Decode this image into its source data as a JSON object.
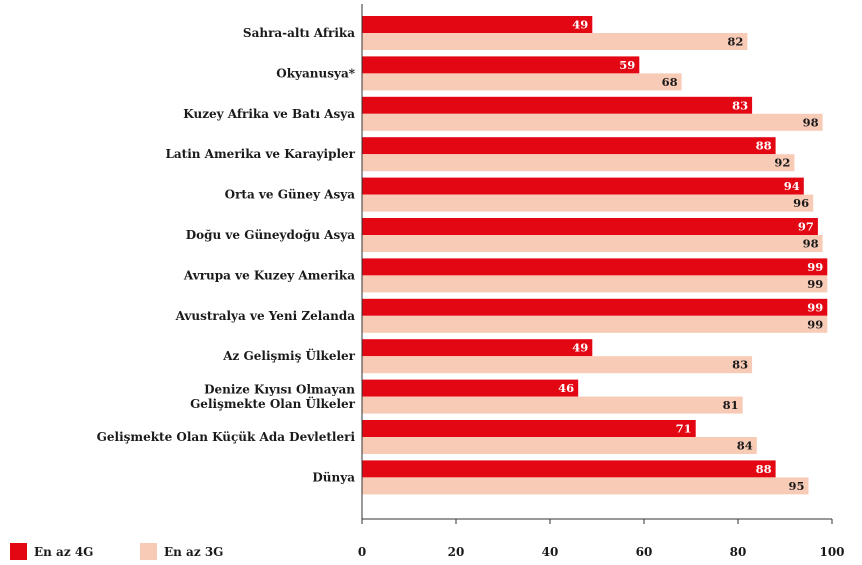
{
  "chart_data": {
    "type": "bar",
    "orientation": "horizontal",
    "categories": [
      [
        "Sahra-altı Afrika"
      ],
      [
        "Okyanusya*"
      ],
      [
        "Kuzey Afrika ve Batı Asya"
      ],
      [
        "Latin Amerika ve Karayipler"
      ],
      [
        "Orta ve Güney Asya"
      ],
      [
        "Doğu ve Güneydoğu Asya"
      ],
      [
        "Avrupa ve Kuzey Amerika"
      ],
      [
        "Avustralya ve Yeni Zelanda"
      ],
      [
        "Az Gelişmiş Ülkeler"
      ],
      [
        "Denize Kıyısı Olmayan",
        "Gelişmekte Olan Ülkeler"
      ],
      [
        "Gelişmekte Olan Küçük Ada Devletleri"
      ],
      [
        "Dünya"
      ]
    ],
    "series": [
      {
        "name": "En az 4G",
        "color": "#e30613",
        "values": [
          49,
          59,
          83,
          88,
          94,
          97,
          99,
          99,
          49,
          46,
          71,
          88
        ]
      },
      {
        "name": "En az 3G",
        "color": "#f8cbb7",
        "values": [
          82,
          68,
          98,
          92,
          96,
          98,
          99,
          99,
          83,
          81,
          84,
          95
        ]
      }
    ],
    "xlim": [
      0,
      100
    ],
    "xticks": [
      0,
      20,
      40,
      60,
      80,
      100
    ],
    "grid": false,
    "legend_position": "bottom-left"
  }
}
